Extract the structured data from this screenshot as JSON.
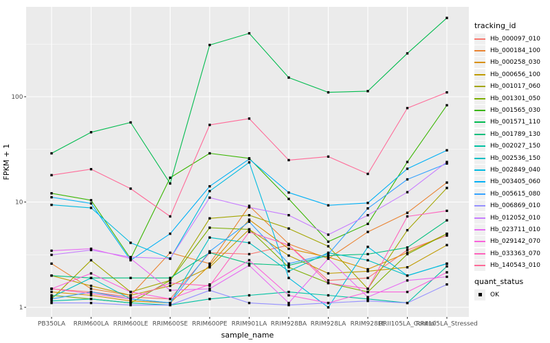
{
  "legend": {
    "tracking_title": "tracking_id",
    "quant_title": "quant_status",
    "quant_label": "OK",
    "key_fill": "#f0f0f0",
    "quant_marker": "black-square"
  },
  "colors": {
    "panel_background": "#EBEBEB",
    "gridline": "#FFFFFF",
    "tick_text": "#4D4D4D",
    "axis_title_text": "#000000",
    "point": "#000000"
  },
  "chart_data": {
    "type": "line",
    "title": "",
    "xlabel": "sample_name",
    "ylabel": "FPKM + 1",
    "y_scale": "log10",
    "y_ticks": [
      1,
      10,
      100
    ],
    "y_minor_ticks": [
      3.162,
      31.62,
      316.2
    ],
    "ylim": [
      0.82,
      700
    ],
    "grid": true,
    "legend_position": "right",
    "point_marker": "black-square",
    "categories": [
      "PB350LA",
      "RRIM600LA",
      "RRIM600LE",
      "RRIM600SE",
      "RRIM600PE",
      "RRIM901LA",
      "RRIM928BA",
      "RRIM928LA",
      "RRIM928LE",
      "RRII105LA_Control",
      "RRII105LA_Stressed"
    ],
    "series": [
      {
        "name": "Hb_000097_010",
        "color": "#F8766D",
        "values": [
          1.5,
          1.4,
          1.25,
          1.2,
          3.3,
          3.2,
          3.9,
          1.8,
          1.9,
          3.5,
          4.8
        ]
      },
      {
        "name": "Hb_000184_100",
        "color": "#EA8331",
        "values": [
          2.6,
          1.5,
          1.3,
          3.3,
          2.6,
          9.2,
          4.0,
          2.9,
          5.2,
          7.9,
          15.3
        ]
      },
      {
        "name": "Hb_000258_030",
        "color": "#D89000",
        "values": [
          1.4,
          1.3,
          1.15,
          1.1,
          2.5,
          6.8,
          3.6,
          3.0,
          2.3,
          3.3,
          5.0
        ]
      },
      {
        "name": "Hb_000656_100",
        "color": "#C09B00",
        "values": [
          2.0,
          1.6,
          1.3,
          1.6,
          2.4,
          5.5,
          3.1,
          2.1,
          2.2,
          2.4,
          3.9
        ]
      },
      {
        "name": "Hb_001017_060",
        "color": "#A3A500",
        "values": [
          1.2,
          2.8,
          1.4,
          1.8,
          7.0,
          7.5,
          5.6,
          3.8,
          1.5,
          5.4,
          13.6
        ]
      },
      {
        "name": "Hb_001301_050",
        "color": "#7CAE00",
        "values": [
          1.3,
          1.2,
          1.1,
          1.8,
          5.7,
          5.5,
          2.4,
          1.7,
          1.4,
          3.2,
          5.0
        ]
      },
      {
        "name": "Hb_001565_030",
        "color": "#39B600",
        "values": [
          12.1,
          10.4,
          2.9,
          17,
          29,
          26,
          10.7,
          4.2,
          6.2,
          24,
          83
        ]
      },
      {
        "name": "Hb_001571_110",
        "color": "#00BB4E",
        "values": [
          29,
          46,
          57,
          15,
          310,
          400,
          152,
          110,
          113,
          258,
          560
        ]
      },
      {
        "name": "Hb_001789_130",
        "color": "#00BF7D",
        "values": [
          2.0,
          1.9,
          1.9,
          1.9,
          3.3,
          2.6,
          2.5,
          3.1,
          3.2,
          3.7,
          6.7
        ]
      },
      {
        "name": "Hb_002027_150",
        "color": "#00C1A3",
        "values": [
          1.15,
          1.2,
          1.1,
          1.05,
          1.2,
          1.3,
          1.4,
          1.3,
          1.2,
          1.1,
          2.45
        ]
      },
      {
        "name": "Hb_002536_150",
        "color": "#00BFC4",
        "values": [
          1.25,
          1.9,
          1.2,
          1.1,
          4.6,
          4.1,
          2.2,
          3.3,
          2.8,
          2.0,
          2.6
        ]
      },
      {
        "name": "Hb_002849_040",
        "color": "#00BAE0",
        "values": [
          9.4,
          8.8,
          4.1,
          2.9,
          12.7,
          23.8,
          1.9,
          1.0,
          3.75,
          2.0,
          2.6
        ]
      },
      {
        "name": "Hb_003405_060",
        "color": "#00B0F6",
        "values": [
          11.1,
          9.7,
          2.8,
          5.0,
          14.1,
          25.6,
          12.3,
          9.3,
          9.8,
          20.7,
          31
        ]
      },
      {
        "name": "Hb_005615_080",
        "color": "#35A2FF",
        "values": [
          1.2,
          1.4,
          1.2,
          1.1,
          3.4,
          6.5,
          2.6,
          3.2,
          8.7,
          16.4,
          23.2
        ]
      },
      {
        "name": "Hb_006869_010",
        "color": "#9590FF",
        "values": [
          1.1,
          1.1,
          1.05,
          1.05,
          1.45,
          1.1,
          1.05,
          1.1,
          1.15,
          1.1,
          1.65
        ]
      },
      {
        "name": "Hb_012052_010",
        "color": "#C77CFF",
        "values": [
          3.15,
          3.5,
          3.0,
          2.9,
          11.0,
          8.9,
          7.5,
          4.9,
          7.5,
          12.4,
          24
        ]
      },
      {
        "name": "Hb_023711_010",
        "color": "#E76BF3",
        "values": [
          3.45,
          3.6,
          2.9,
          1.45,
          1.5,
          2.5,
          1.1,
          2.9,
          1.25,
          1.8,
          1.95
        ]
      },
      {
        "name": "Hb_029142_070",
        "color": "#FA62DB",
        "values": [
          1.5,
          2.1,
          1.4,
          1.2,
          1.65,
          2.8,
          1.3,
          1.1,
          1.4,
          1.4,
          2.15
        ]
      },
      {
        "name": "Hb_033363_070",
        "color": "#FF62BC",
        "values": [
          1.5,
          1.35,
          1.2,
          1.7,
          1.6,
          5.2,
          3.9,
          1.7,
          1.5,
          7.3,
          8.25
        ]
      },
      {
        "name": "Hb_140543_010",
        "color": "#FF6A98",
        "values": [
          18,
          20.5,
          13.4,
          7.3,
          54,
          62,
          25,
          27,
          18.5,
          78,
          110
        ]
      }
    ]
  }
}
